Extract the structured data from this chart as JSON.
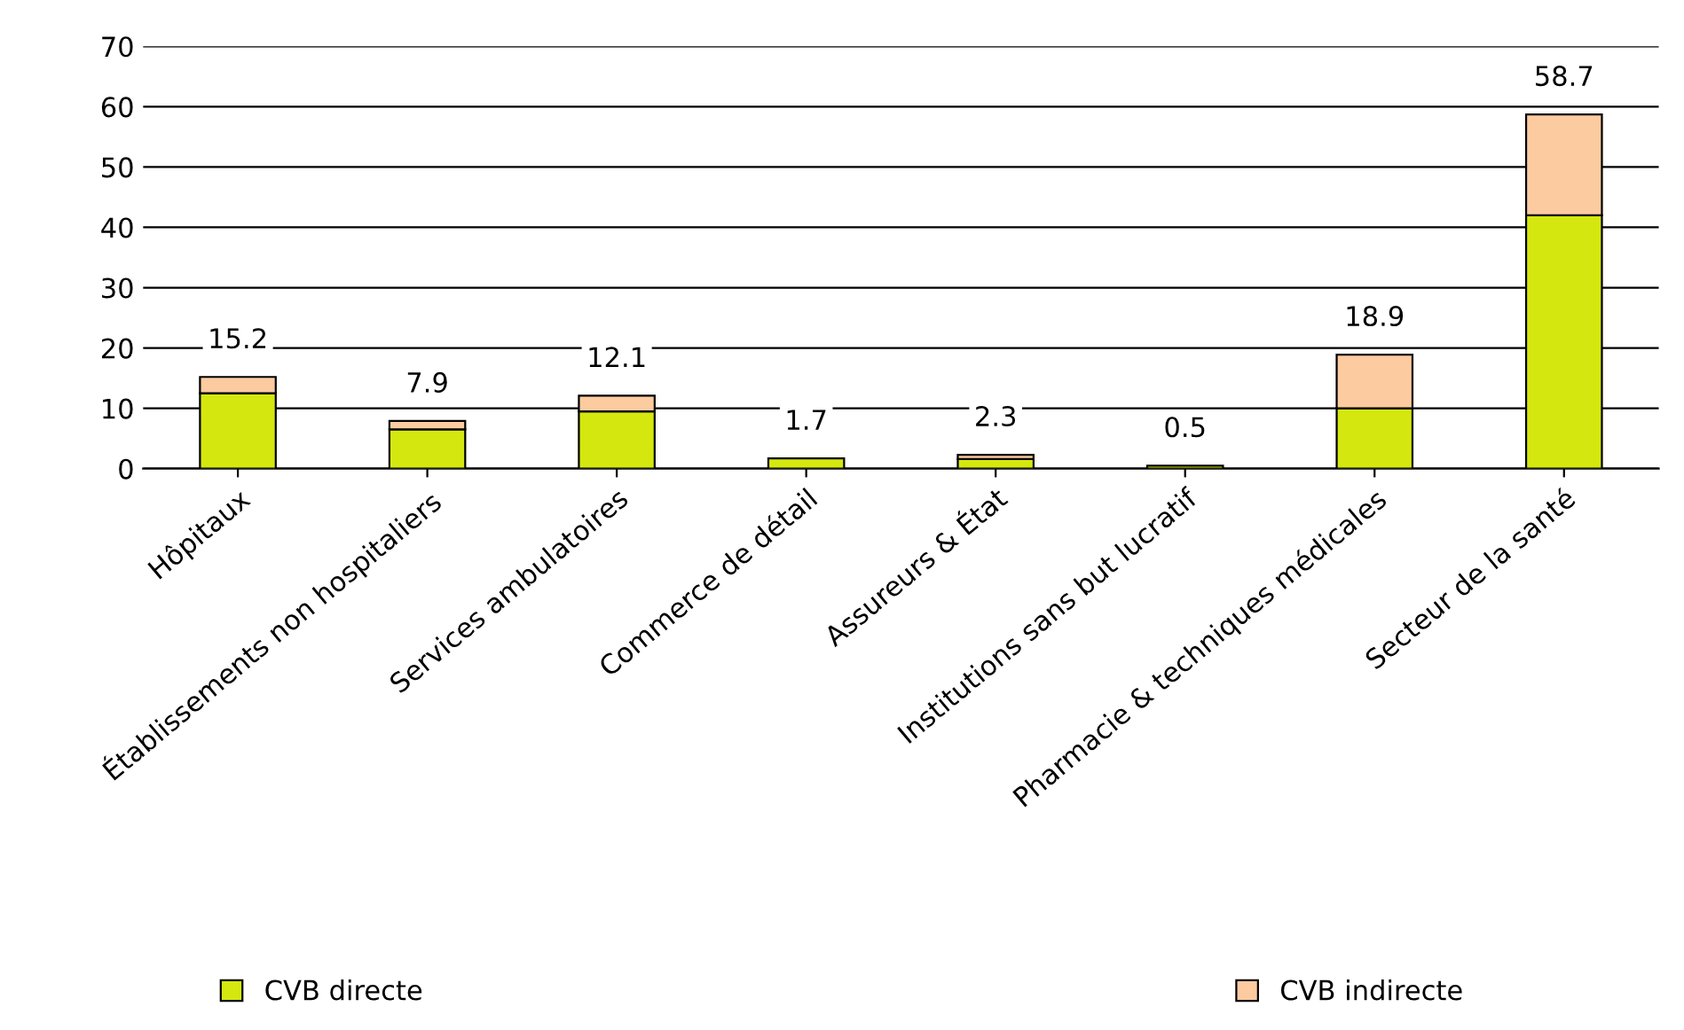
{
  "chart_data": {
    "type": "bar",
    "stacked": true,
    "categories": [
      "Hôpitaux",
      "Établissements non hospitaliers",
      "Services ambulatoires",
      "Commerce de détail",
      "Assureurs & État",
      "Institutions sans but lucratif",
      "Pharmacie & techniques médicales",
      "Secteur de la santé"
    ],
    "series": [
      {
        "name": "CVB directe",
        "color": "#d4e80f",
        "values": [
          12.5,
          6.5,
          9.5,
          1.7,
          1.6,
          0.5,
          10.0,
          42.0
        ]
      },
      {
        "name": "CVB indirecte",
        "color": "#fccba0",
        "values": [
          2.7,
          1.4,
          2.6,
          null,
          0.7,
          null,
          8.9,
          16.7
        ]
      }
    ],
    "totals": [
      "15.2",
      "7.9",
      "12.1",
      "1.7",
      "2.3",
      "0.5",
      "18.9",
      "58.7"
    ],
    "ylim": [
      0,
      70
    ],
    "yticks": [
      0,
      10,
      20,
      30,
      40,
      50,
      60,
      70
    ],
    "grid": "y",
    "legend": "bottom"
  }
}
